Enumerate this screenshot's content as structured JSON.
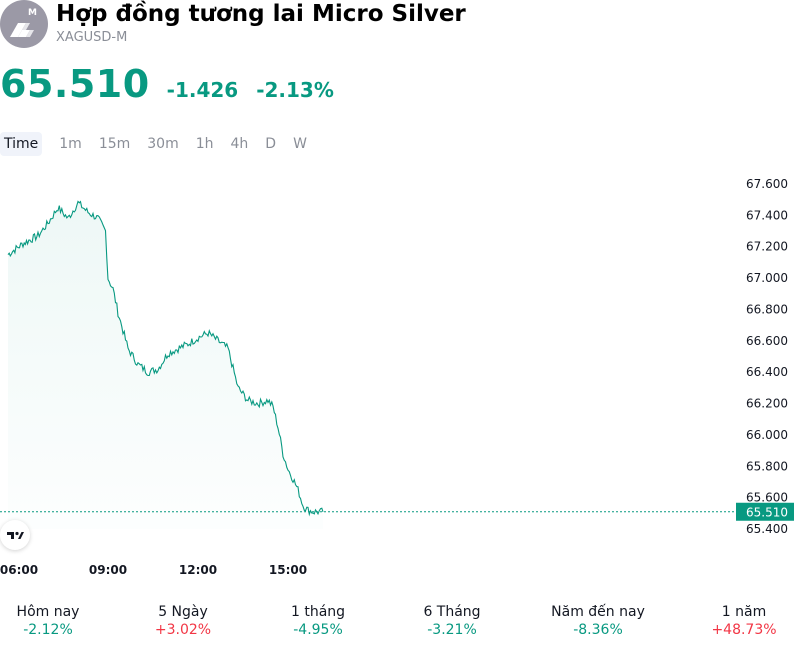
{
  "header": {
    "title": "Hợp đồng tương lai Micro Silver",
    "symbol": "XAGUSD-M",
    "logo_badge": "M",
    "logo_icon": "silver-bars-icon"
  },
  "quote": {
    "price": "65.510",
    "change": "-1.426",
    "change_percent": "-2.13%",
    "color": "#089981"
  },
  "timeframes": [
    "Time",
    "1m",
    "15m",
    "30m",
    "1h",
    "4h",
    "D",
    "W"
  ],
  "performance": [
    {
      "label": "Hôm nay",
      "value": "-2.12%",
      "direction": "down"
    },
    {
      "label": "5 Ngày",
      "value": "+3.02%",
      "direction": "up"
    },
    {
      "label": "1 tháng",
      "value": "-4.95%",
      "direction": "down"
    },
    {
      "label": "6 Tháng",
      "value": "-3.21%",
      "direction": "down"
    },
    {
      "label": "Năm đến nay",
      "value": "-8.36%",
      "direction": "down"
    },
    {
      "label": "1 năm",
      "value": "+48.73%",
      "direction": "up"
    }
  ],
  "colors": {
    "line": "#089981",
    "negative": "#089981",
    "positive": "#f23645"
  },
  "chart_data": {
    "type": "area",
    "title": "",
    "xlabel": "",
    "ylabel": "",
    "x_ticks": [
      "06:00",
      "09:00",
      "12:00",
      "15:00"
    ],
    "y_ticks": [
      "67.600",
      "67.400",
      "67.200",
      "67.000",
      "66.800",
      "66.600",
      "66.400",
      "66.200",
      "66.000",
      "65.800",
      "65.600",
      "65.400"
    ],
    "ylim": [
      65.4,
      67.6
    ],
    "last_price_label": "65.510",
    "grid": false,
    "series": [
      {
        "x": [
          "05:40",
          "06:10",
          "06:40",
          "07:00",
          "07:20",
          "07:40",
          "08:00",
          "08:20",
          "08:40",
          "08:55",
          "09:00",
          "09:10",
          "09:20",
          "09:40",
          "10:00",
          "10:20",
          "10:40",
          "11:00",
          "11:20",
          "11:40",
          "12:00",
          "12:20",
          "12:40",
          "13:00",
          "13:20",
          "13:40",
          "14:00",
          "14:20",
          "14:30",
          "14:40",
          "14:50",
          "15:00",
          "15:10",
          "15:20",
          "15:30",
          "15:40",
          "15:50",
          "16:00",
          "16:10"
        ],
        "values": [
          67.15,
          67.22,
          67.27,
          67.35,
          67.45,
          67.38,
          67.48,
          67.42,
          67.38,
          67.3,
          67.0,
          66.93,
          66.78,
          66.55,
          66.45,
          66.4,
          66.42,
          66.52,
          66.55,
          66.58,
          66.62,
          66.65,
          66.6,
          66.55,
          66.3,
          66.22,
          66.2,
          66.22,
          66.18,
          66.05,
          65.88,
          65.78,
          65.72,
          65.65,
          65.55,
          65.52,
          65.51,
          65.51,
          65.51
        ]
      }
    ]
  }
}
